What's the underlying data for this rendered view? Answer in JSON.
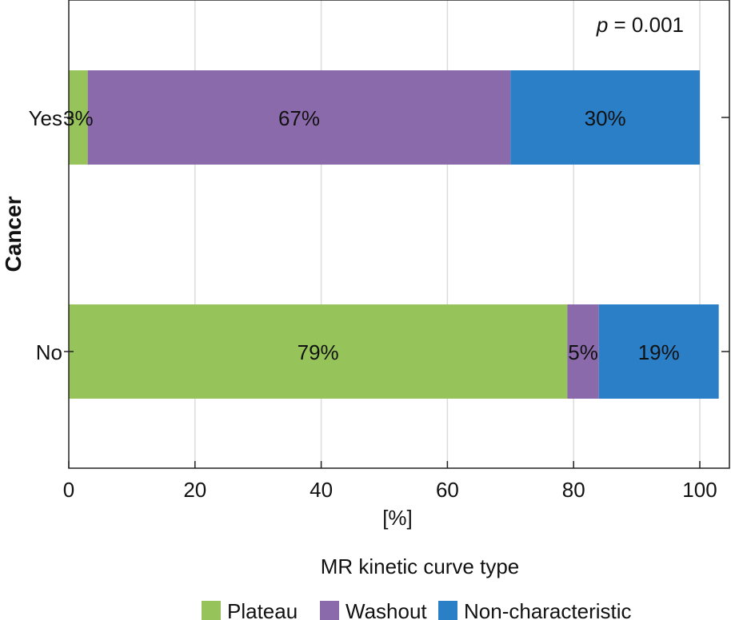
{
  "chart_data": {
    "type": "bar",
    "orientation": "horizontal",
    "stacked": true,
    "categories": [
      "Yes",
      "No"
    ],
    "series": [
      {
        "name": "Plateau",
        "color": "#96c45a",
        "values": [
          3,
          79
        ],
        "labels": [
          "3%",
          "79%"
        ]
      },
      {
        "name": "Washout",
        "color": "#8b6aab",
        "values": [
          67,
          5
        ],
        "labels": [
          "67%",
          "5%"
        ]
      },
      {
        "name": "Non-characteristic",
        "color": "#2a7fc7",
        "values": [
          30,
          19
        ],
        "labels": [
          "30%",
          "19%"
        ]
      }
    ],
    "xlabel": "[%]",
    "ylabel": "Cancer",
    "xlim": [
      0,
      100
    ],
    "xticks": [
      0,
      20,
      40,
      60,
      80,
      100
    ],
    "xtick_labels": [
      "0",
      "20",
      "40",
      "60",
      "80",
      "100"
    ],
    "grid": "vertical",
    "annotation": {
      "italic": "p",
      "rest": " = 0.001"
    },
    "legend": {
      "title": "MR kinetic curve type",
      "placement": "bottom"
    }
  }
}
